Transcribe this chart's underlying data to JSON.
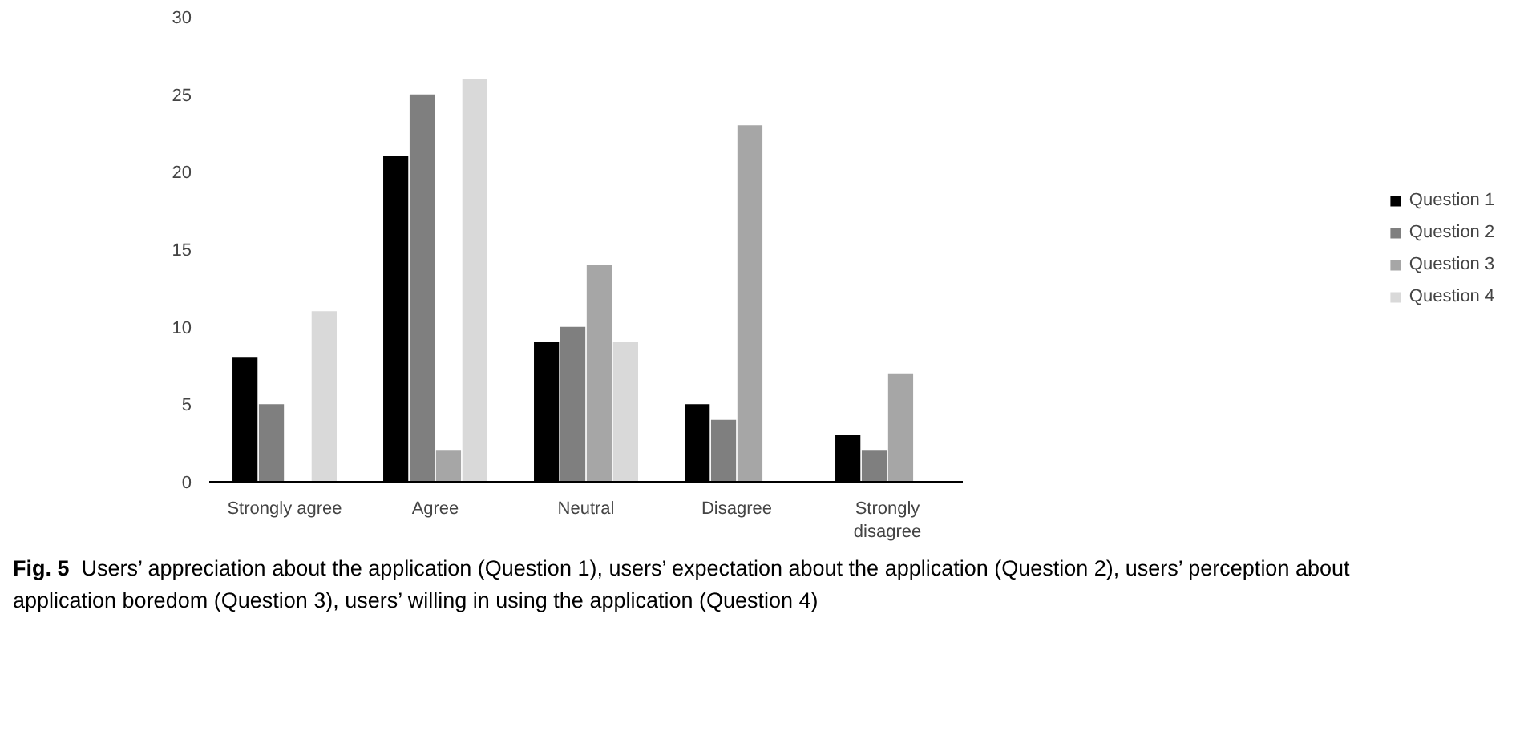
{
  "chart_data": {
    "type": "bar",
    "categories": [
      "Strongly agree",
      "Agree",
      "Neutral",
      "Disagree",
      "Strongly disagree"
    ],
    "series": [
      {
        "name": "Question 1",
        "color": "#000000",
        "values": [
          8,
          21,
          9,
          5,
          3
        ]
      },
      {
        "name": "Question 2",
        "color": "#7f7f7f",
        "values": [
          5,
          25,
          10,
          4,
          2
        ]
      },
      {
        "name": "Question 3",
        "color": "#a6a6a6",
        "values": [
          0,
          2,
          14,
          23,
          7
        ]
      },
      {
        "name": "Question 4",
        "color": "#d9d9d9",
        "values": [
          11,
          26,
          9,
          0,
          0
        ]
      }
    ],
    "ylim": [
      0,
      30
    ],
    "yticks": [
      0,
      5,
      10,
      15,
      20,
      25,
      30
    ],
    "grid": false,
    "legend": "right",
    "annotations": [
      "Fig. 5 Users’ appreciation about the application (Question 1), users’ expectation about the application (Question 2), users’ perception about application boredom (Question 3), users’ willing in using the application (Question 4)"
    ]
  }
}
